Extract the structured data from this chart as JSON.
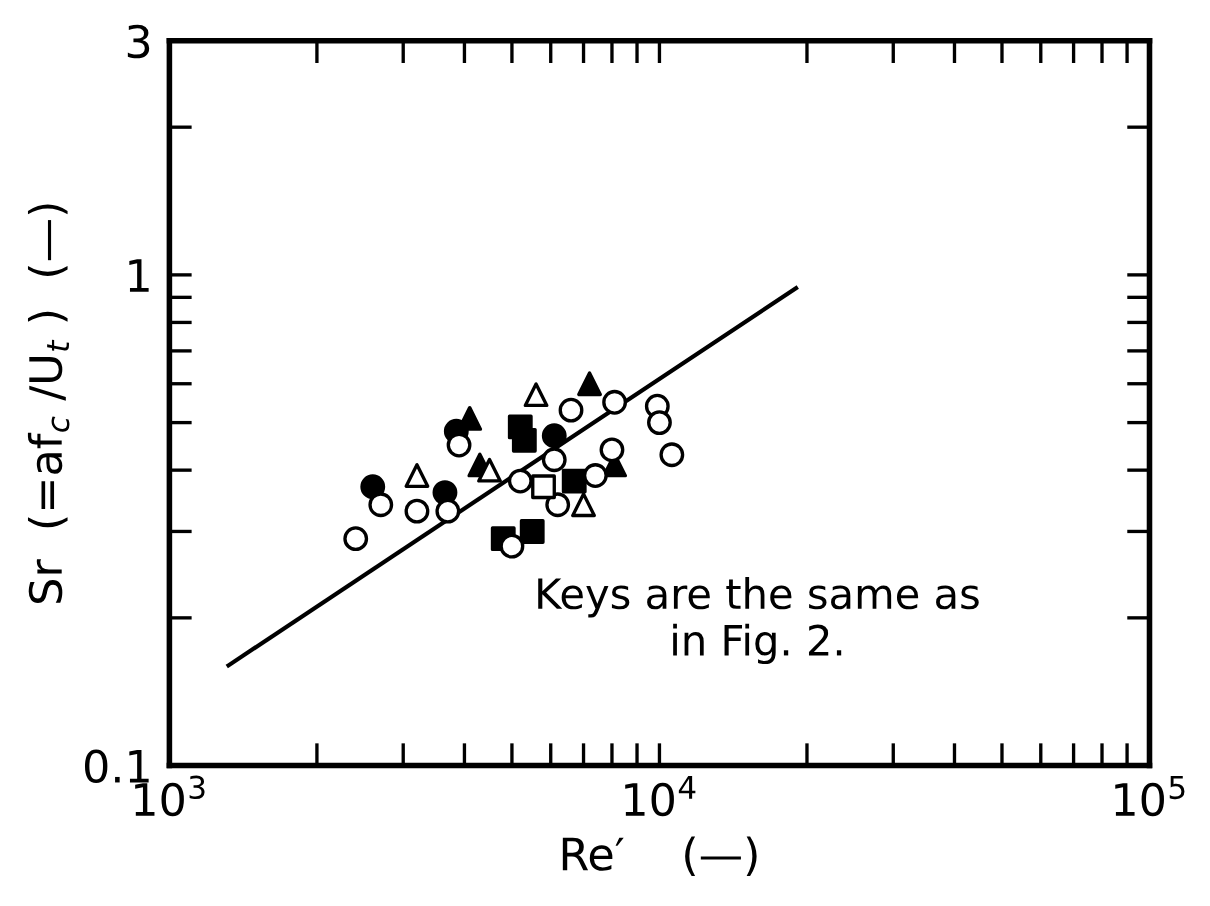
{
  "chart_data": {
    "type": "scatter",
    "xlabel": "Re′    (—)",
    "ylabel": "Sr  (=af$_{c}$ /U$_{t}$ )  (—)",
    "annotations": [
      "Keys are the same as\nin Fig. 2."
    ],
    "log": "xy",
    "xlim": [
      1000,
      100000
    ],
    "ylim": [
      0.1,
      3
    ],
    "xticks": [
      {
        "value": 1000,
        "label": "10$^{3}$"
      },
      {
        "value": 2000,
        "label": null
      },
      {
        "value": 3000,
        "label": null
      },
      {
        "value": 4000,
        "label": null
      },
      {
        "value": 5000,
        "label": null
      },
      {
        "value": 6000,
        "label": null
      },
      {
        "value": 7000,
        "label": null
      },
      {
        "value": 8000,
        "label": null
      },
      {
        "value": 9000,
        "label": null
      },
      {
        "value": 10000,
        "label": "10$^{4}$"
      },
      {
        "value": 20000,
        "label": null
      },
      {
        "value": 30000,
        "label": null
      },
      {
        "value": 40000,
        "label": null
      },
      {
        "value": 50000,
        "label": null
      },
      {
        "value": 60000,
        "label": null
      },
      {
        "value": 70000,
        "label": null
      },
      {
        "value": 80000,
        "label": null
      },
      {
        "value": 90000,
        "label": null
      },
      {
        "value": 100000,
        "label": "10$^{5}$"
      }
    ],
    "yticks": [
      {
        "value": 0.1,
        "label": "0.1"
      },
      {
        "value": 0.2,
        "label": null
      },
      {
        "value": 0.3,
        "label": null
      },
      {
        "value": 0.4,
        "label": null
      },
      {
        "value": 0.5,
        "label": null
      },
      {
        "value": 0.6,
        "label": null
      },
      {
        "value": 0.7,
        "label": null
      },
      {
        "value": 0.8,
        "label": null
      },
      {
        "value": 0.9,
        "label": null
      },
      {
        "value": 1,
        "label": "1"
      },
      {
        "value": 2,
        "label": null
      },
      {
        "value": 3,
        "label": "3"
      }
    ],
    "grid": false,
    "series": [
      {
        "marker": "circle",
        "color": "#ffffff",
        "x": [
          2400,
          2700,
          3200,
          3700,
          3900,
          5200,
          6100,
          6200,
          7400,
          6600,
          8100,
          8000,
          9900,
          10000,
          10600,
          5000
        ],
        "values": [
          0.29,
          0.34,
          0.33,
          0.33,
          0.45,
          0.38,
          0.42,
          0.34,
          0.39,
          0.53,
          0.55,
          0.44,
          0.54,
          0.5,
          0.43,
          0.28
        ]
      },
      {
        "marker": "circle",
        "color": "#000000",
        "x": [
          2600,
          3650,
          3850,
          6100
        ],
        "values": [
          0.37,
          0.36,
          0.48,
          0.47
        ]
      },
      {
        "marker": "triangle",
        "color": "#ffffff",
        "x": [
          3200,
          4500,
          5600,
          7000
        ],
        "values": [
          0.39,
          0.4,
          0.57,
          0.34
        ]
      },
      {
        "marker": "triangle",
        "color": "#000000",
        "x": [
          4100,
          4300,
          8100,
          7200
        ],
        "values": [
          0.51,
          0.41,
          0.41,
          0.6
        ]
      },
      {
        "marker": "square",
        "color": "#000000",
        "x": [
          5200,
          5300,
          6700,
          4800,
          5500
        ],
        "values": [
          0.49,
          0.46,
          0.38,
          0.29,
          0.3
        ]
      },
      {
        "marker": "square",
        "color": "#ffffff",
        "x": [
          5800
        ],
        "values": [
          0.37
        ]
      },
      {
        "type": "line",
        "color": "#000000",
        "line_style": "solid",
        "marker": "none",
        "x": [
          1320,
          19000
        ],
        "values": [
          0.16,
          0.94
        ]
      }
    ]
  }
}
